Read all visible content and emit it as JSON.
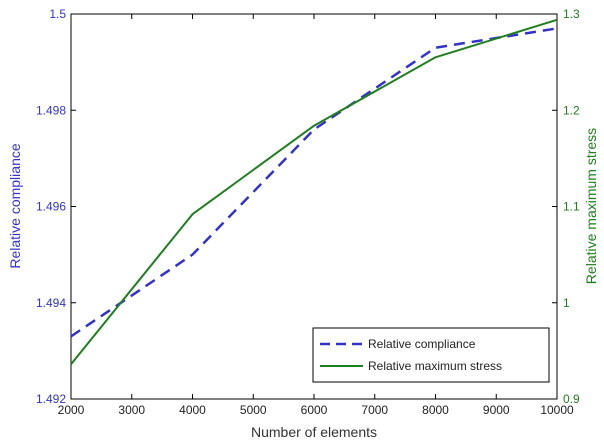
{
  "chart_data": {
    "type": "line",
    "xlabel": "Number of elements",
    "ylabel_left": "Relative compliance",
    "ylabel_right": "Relative maximum stress",
    "xlim": [
      2000,
      10000
    ],
    "ylim_left": [
      1.492,
      1.5
    ],
    "ylim_right": [
      0.9,
      1.3
    ],
    "xticks": [
      2000,
      3000,
      4000,
      5000,
      6000,
      7000,
      8000,
      9000,
      10000
    ],
    "xtick_labels": [
      "2000",
      "3000",
      "4000",
      "5000",
      "6000",
      "7000",
      "8000",
      "9000",
      "10000"
    ],
    "yticks_left": [
      1.492,
      1.494,
      1.496,
      1.498,
      1.5
    ],
    "ytick_labels_left": [
      "1.492",
      "1.494",
      "1.496",
      "1.498",
      "1.5"
    ],
    "yticks_right": [
      0.9,
      1.0,
      1.1,
      1.2,
      1.3
    ],
    "ytick_labels_right": [
      "0.9",
      "1",
      "1.1",
      "1.2",
      "1.3"
    ],
    "legend_position": "bottom-right",
    "grid": false,
    "series": [
      {
        "name": "Relative compliance",
        "axis": "left",
        "color": "#3333cc",
        "style": "dashed",
        "x": [
          2000,
          4000,
          6000,
          8000,
          10000
        ],
        "y": [
          1.4933,
          1.495,
          1.4976,
          1.4993,
          1.4997
        ]
      },
      {
        "name": "Relative maximum stress",
        "axis": "right",
        "color": "#1f7f1f",
        "style": "solid",
        "x": [
          2000,
          4000,
          6000,
          8000,
          10000
        ],
        "y": [
          0.936,
          1.092,
          1.184,
          1.255,
          1.294
        ]
      }
    ]
  }
}
